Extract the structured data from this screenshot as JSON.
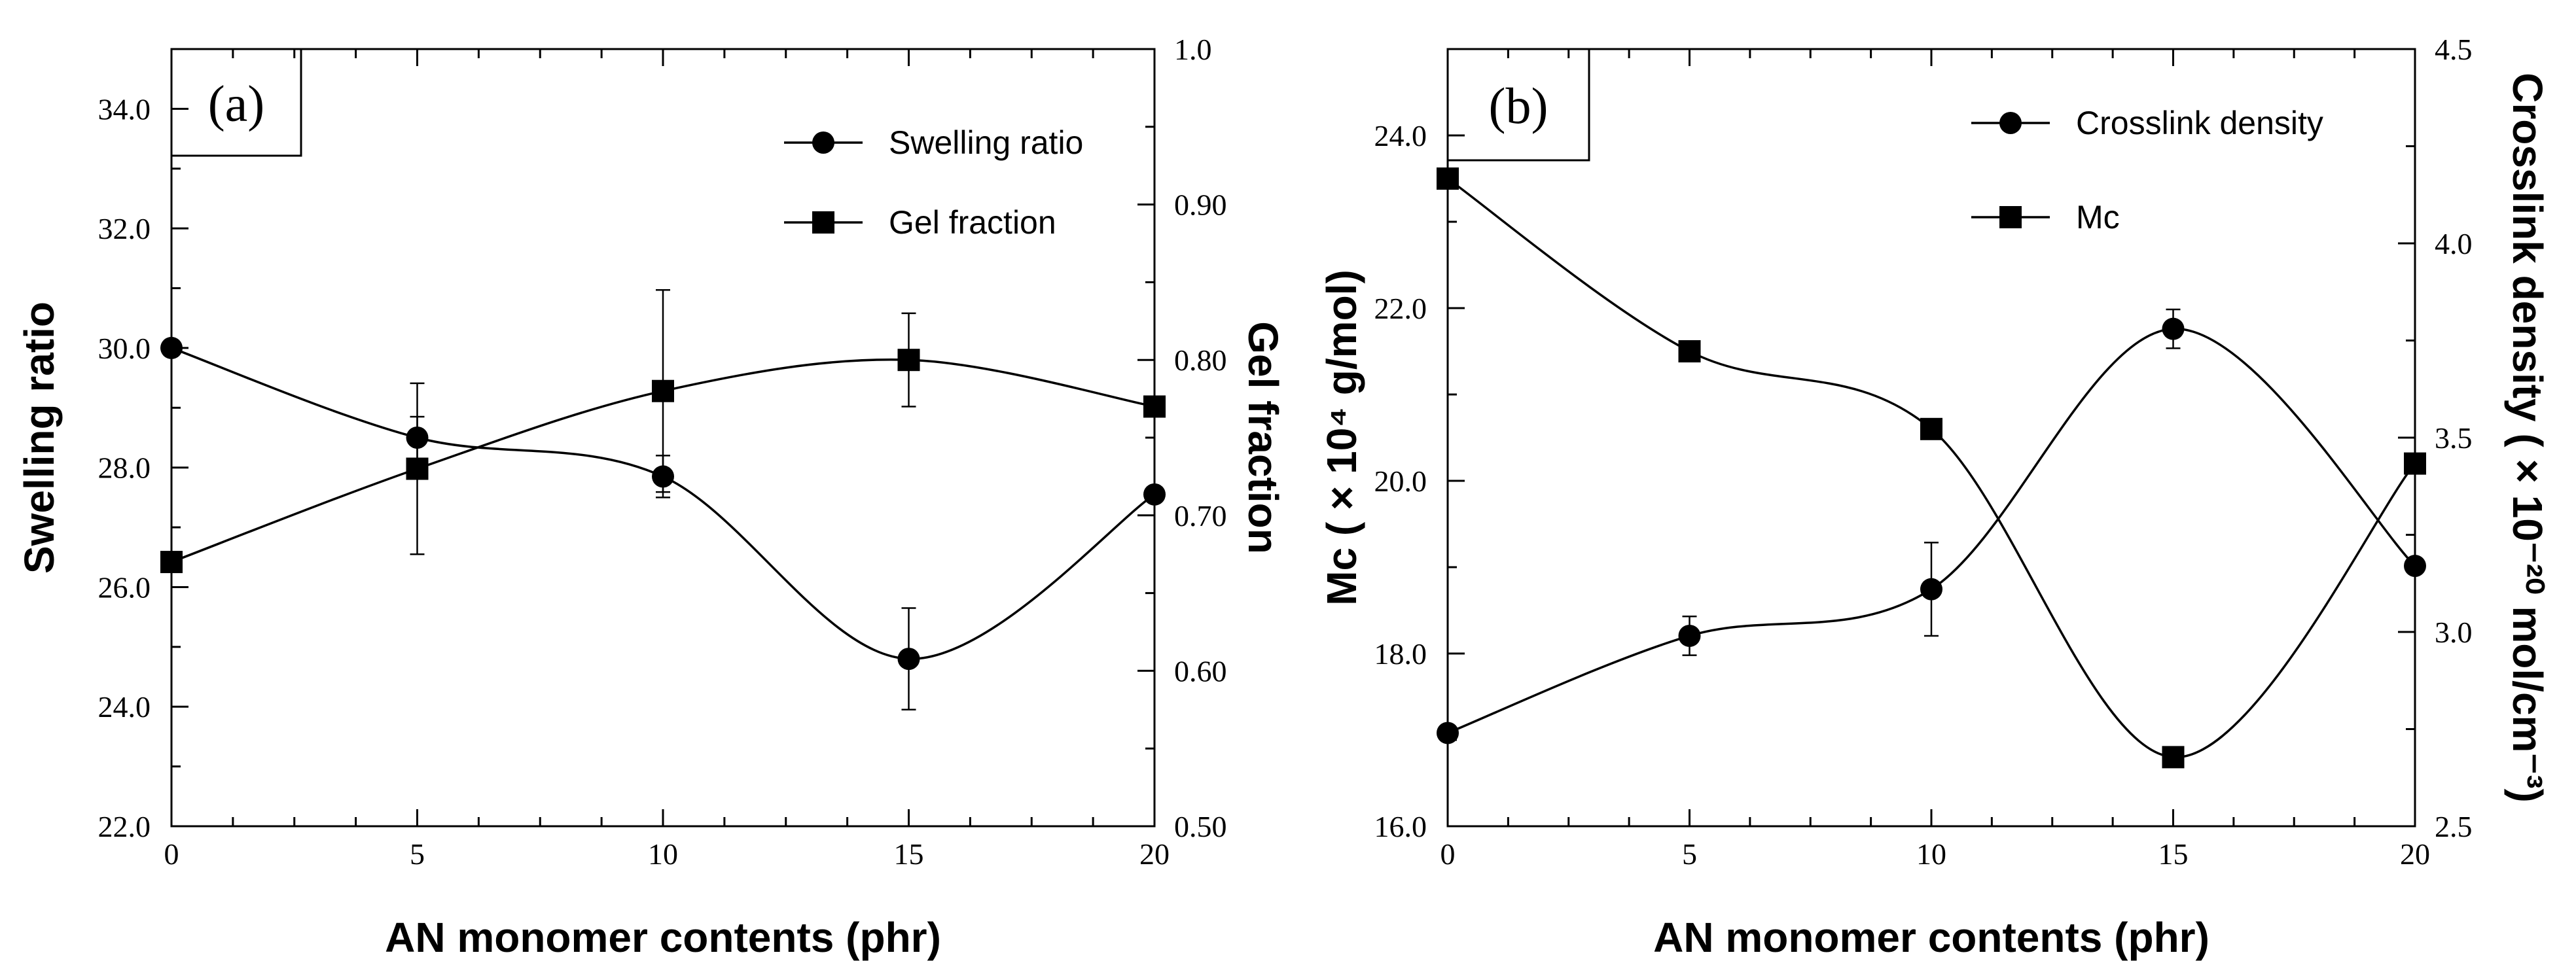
{
  "chart_data": [
    {
      "type": "line",
      "panel_label": "(a)",
      "xlabel": "AN monomer contents (phr)",
      "x": [
        0,
        5,
        10,
        15,
        20
      ],
      "xticks": [
        "0",
        "5",
        "10",
        "15",
        "20"
      ],
      "ylabel_left": "Swelling ratio",
      "ylim_left": [
        22.0,
        35.0
      ],
      "yticks_left": [
        "22.0",
        "24.0",
        "26.0",
        "28.0",
        "30.0",
        "32.0",
        "34.0"
      ],
      "ylabel_right": "Gel fraction",
      "ylim_right": [
        0.5,
        1.0
      ],
      "yticks_right": [
        "0.50",
        "0.60",
        "0.70",
        "0.80",
        "0.90",
        "1.0"
      ],
      "legend_position": "top-right",
      "series": [
        {
          "name": "Swelling ratio",
          "marker": "circle",
          "axis": "left",
          "values": [
            30.0,
            28.5,
            27.85,
            24.8,
            27.55
          ],
          "errors": [
            0,
            0.35,
            0.35,
            0.85,
            0
          ]
        },
        {
          "name": "Gel fraction",
          "marker": "square",
          "axis": "right",
          "values": [
            0.67,
            0.73,
            0.78,
            0.8,
            0.77
          ],
          "errors": [
            0,
            0.055,
            0.065,
            0.03,
            0
          ]
        }
      ]
    },
    {
      "type": "line",
      "panel_label": "(b)",
      "xlabel": "AN monomer contents (phr)",
      "x": [
        0,
        5,
        10,
        15,
        20
      ],
      "xticks": [
        "0",
        "5",
        "10",
        "15",
        "20"
      ],
      "ylabel_left": "Mc ( × 10⁴ g/mol)",
      "ylim_left": [
        16.0,
        25.0
      ],
      "yticks_left": [
        "16.0",
        "18.0",
        "20.0",
        "22.0",
        "24.0"
      ],
      "ylabel_right": "Crosslink density ( × 10⁻²⁰ mol/cm⁻³)",
      "ylim_right": [
        2.5,
        4.5
      ],
      "yticks_right": [
        "2.5",
        "3.0",
        "3.5",
        "4.0",
        "4.5"
      ],
      "legend_position": "top-right",
      "series": [
        {
          "name": "Crosslink density",
          "marker": "circle",
          "axis": "right",
          "values": [
            2.74,
            2.99,
            3.11,
            3.78,
            3.17
          ],
          "errors": [
            0,
            0.05,
            0.12,
            0.05,
            0
          ]
        },
        {
          "name": "Mc",
          "marker": "square",
          "axis": "left",
          "values": [
            23.5,
            21.5,
            20.6,
            16.8,
            20.2
          ],
          "errors": [
            0,
            0,
            0,
            0,
            0
          ]
        }
      ]
    }
  ]
}
